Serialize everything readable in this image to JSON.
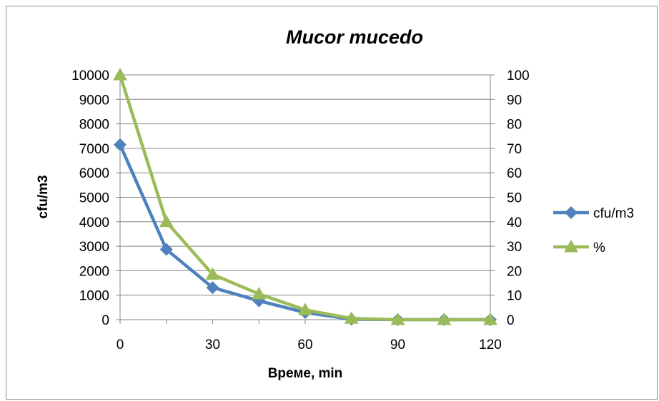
{
  "chart_data": {
    "type": "line",
    "title": "Mucor mucedo",
    "xlabel": "Време, min",
    "ylabel": "cfu/m3",
    "y2label": "",
    "x": [
      0,
      15,
      30,
      45,
      60,
      75,
      90,
      105,
      120
    ],
    "x_ticks": [
      0,
      30,
      60,
      90,
      120
    ],
    "xlim": [
      0,
      120
    ],
    "ylim": [
      0,
      10000
    ],
    "y_ticks": [
      0,
      1000,
      2000,
      3000,
      4000,
      5000,
      6000,
      7000,
      8000,
      9000,
      10000
    ],
    "y2lim": [
      0,
      100
    ],
    "y2_ticks": [
      0,
      10,
      20,
      30,
      40,
      50,
      60,
      70,
      80,
      90,
      100
    ],
    "grid": true,
    "legend_position": "right",
    "series": [
      {
        "name": "cfu/m3",
        "axis": "left",
        "color": "#4f81bd",
        "marker": "diamond",
        "values": [
          7150,
          2870,
          1310,
          770,
          290,
          20,
          0,
          0,
          0
        ]
      },
      {
        "name": "%",
        "axis": "right",
        "color": "#9bbb59",
        "marker": "triangle",
        "values": [
          100,
          40,
          18.5,
          10.5,
          4,
          0.5,
          0,
          0,
          0
        ]
      }
    ]
  }
}
